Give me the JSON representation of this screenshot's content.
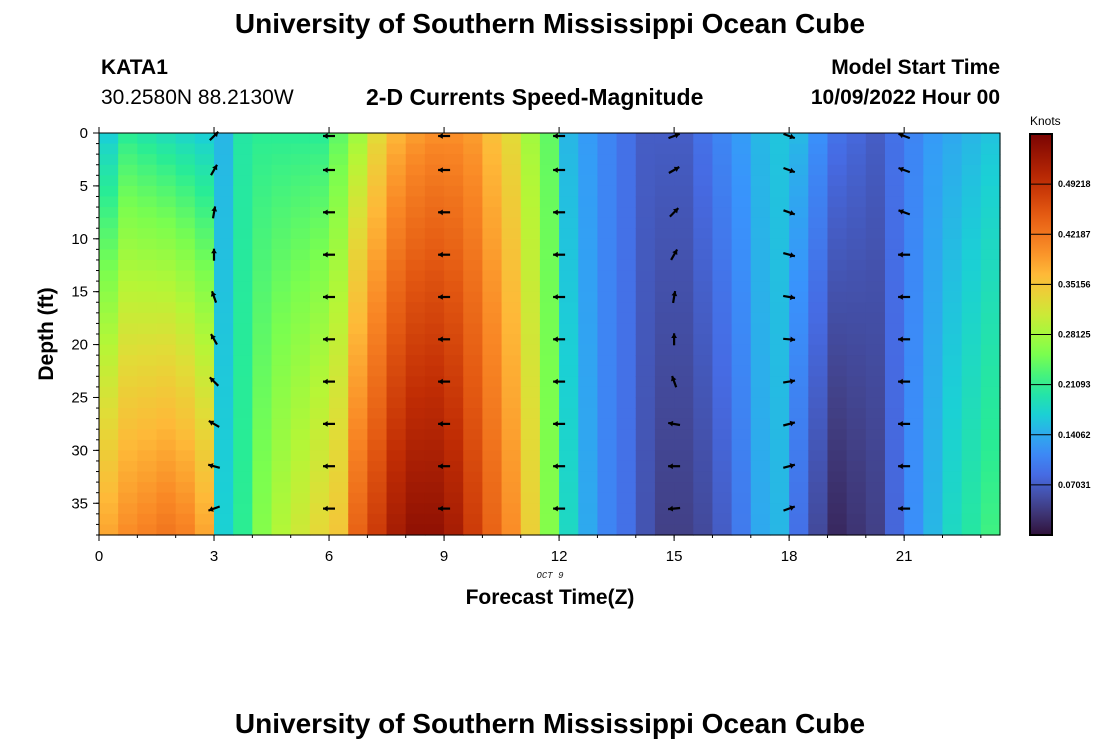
{
  "page": {
    "title": "University of Southern Mississippi Ocean Cube",
    "station": "KATA1",
    "coordinates": "30.2580N  88.2130W",
    "plot_title": "2-D Currents Speed-Magnitude",
    "model_start_label": "Model Start Time",
    "model_start_value": "10/09/2022 Hour 00",
    "footer_title": "University of Southern Mississippi Ocean Cube"
  },
  "chart_data": {
    "type": "heatmap",
    "title": "2-D Currents Speed-Magnitude",
    "xlabel": "Forecast Time(Z)",
    "ylabel": "Depth (ft)",
    "date_label": "OCT 9",
    "xlim": [
      0,
      23.5
    ],
    "ylim": [
      0,
      38
    ],
    "xticks": [
      0,
      3,
      6,
      9,
      12,
      15,
      18,
      21
    ],
    "yticks": [
      0,
      5,
      10,
      15,
      20,
      25,
      30,
      35
    ],
    "colorbar": {
      "label": "Knots",
      "min": 0,
      "max": 0.5625,
      "ticks": [
        "0.49218",
        "0.42187",
        "0.35156",
        "0.28125",
        "0.21093",
        "0.14062",
        "0.07031"
      ],
      "tick_values": [
        0.49218,
        0.42187,
        0.35156,
        0.28125,
        0.21093,
        0.14062,
        0.07031
      ]
    },
    "hours": [
      0,
      0.5,
      1,
      1.5,
      2,
      2.5,
      3,
      3.5,
      4,
      4.5,
      5,
      5.5,
      6,
      6.5,
      7,
      7.5,
      8,
      8.5,
      9,
      9.5,
      10,
      10.5,
      11,
      11.5,
      12,
      12.5,
      13,
      13.5,
      14,
      14.5,
      15,
      15.5,
      16,
      16.5,
      17,
      17.5,
      18,
      18.5,
      19,
      19.5,
      20,
      20.5,
      21,
      21.5,
      22,
      22.5,
      23
    ],
    "surface_speed": [
      0.17,
      0.21,
      0.2,
      0.19,
      0.18,
      0.17,
      0.15,
      0.2,
      0.21,
      0.21,
      0.21,
      0.21,
      0.24,
      0.28,
      0.33,
      0.37,
      0.39,
      0.4,
      0.4,
      0.39,
      0.36,
      0.33,
      0.28,
      0.24,
      0.15,
      0.13,
      0.11,
      0.09,
      0.07,
      0.07,
      0.07,
      0.09,
      0.11,
      0.13,
      0.15,
      0.16,
      0.15,
      0.12,
      0.09,
      0.08,
      0.07,
      0.09,
      0.11,
      0.13,
      0.14,
      0.15,
      0.16
    ],
    "bottom_speed": [
      0.38,
      0.4,
      0.41,
      0.42,
      0.41,
      0.38,
      0.17,
      0.21,
      0.26,
      0.29,
      0.31,
      0.33,
      0.35,
      0.44,
      0.48,
      0.52,
      0.54,
      0.54,
      0.52,
      0.48,
      0.44,
      0.4,
      0.34,
      0.26,
      0.18,
      0.14,
      0.11,
      0.09,
      0.06,
      0.04,
      0.04,
      0.05,
      0.07,
      0.1,
      0.14,
      0.15,
      0.09,
      0.05,
      0.02,
      0.03,
      0.04,
      0.08,
      0.12,
      0.15,
      0.18,
      0.2,
      0.22
    ],
    "vector_hours": [
      3,
      6,
      9,
      12,
      15,
      18,
      21
    ],
    "vector_depths": [
      0,
      3.5,
      7.5,
      11.5,
      15.5,
      19.5,
      23.5,
      27.5,
      31.5,
      35.5
    ],
    "vector_directions_deg": [
      [
        45,
        60,
        80,
        90,
        110,
        120,
        135,
        150,
        165,
        200
      ],
      [
        180,
        180,
        180,
        180,
        180,
        180,
        180,
        180,
        180,
        180
      ],
      [
        180,
        180,
        180,
        180,
        180,
        180,
        180,
        180,
        180,
        180
      ],
      [
        180,
        180,
        180,
        180,
        180,
        180,
        180,
        180,
        180,
        180
      ],
      [
        20,
        30,
        45,
        60,
        80,
        90,
        110,
        170,
        180,
        185
      ],
      [
        340,
        340,
        340,
        345,
        350,
        355,
        10,
        15,
        15,
        20
      ],
      [
        160,
        160,
        160,
        180,
        180,
        180,
        180,
        180,
        180,
        180
      ]
    ]
  }
}
